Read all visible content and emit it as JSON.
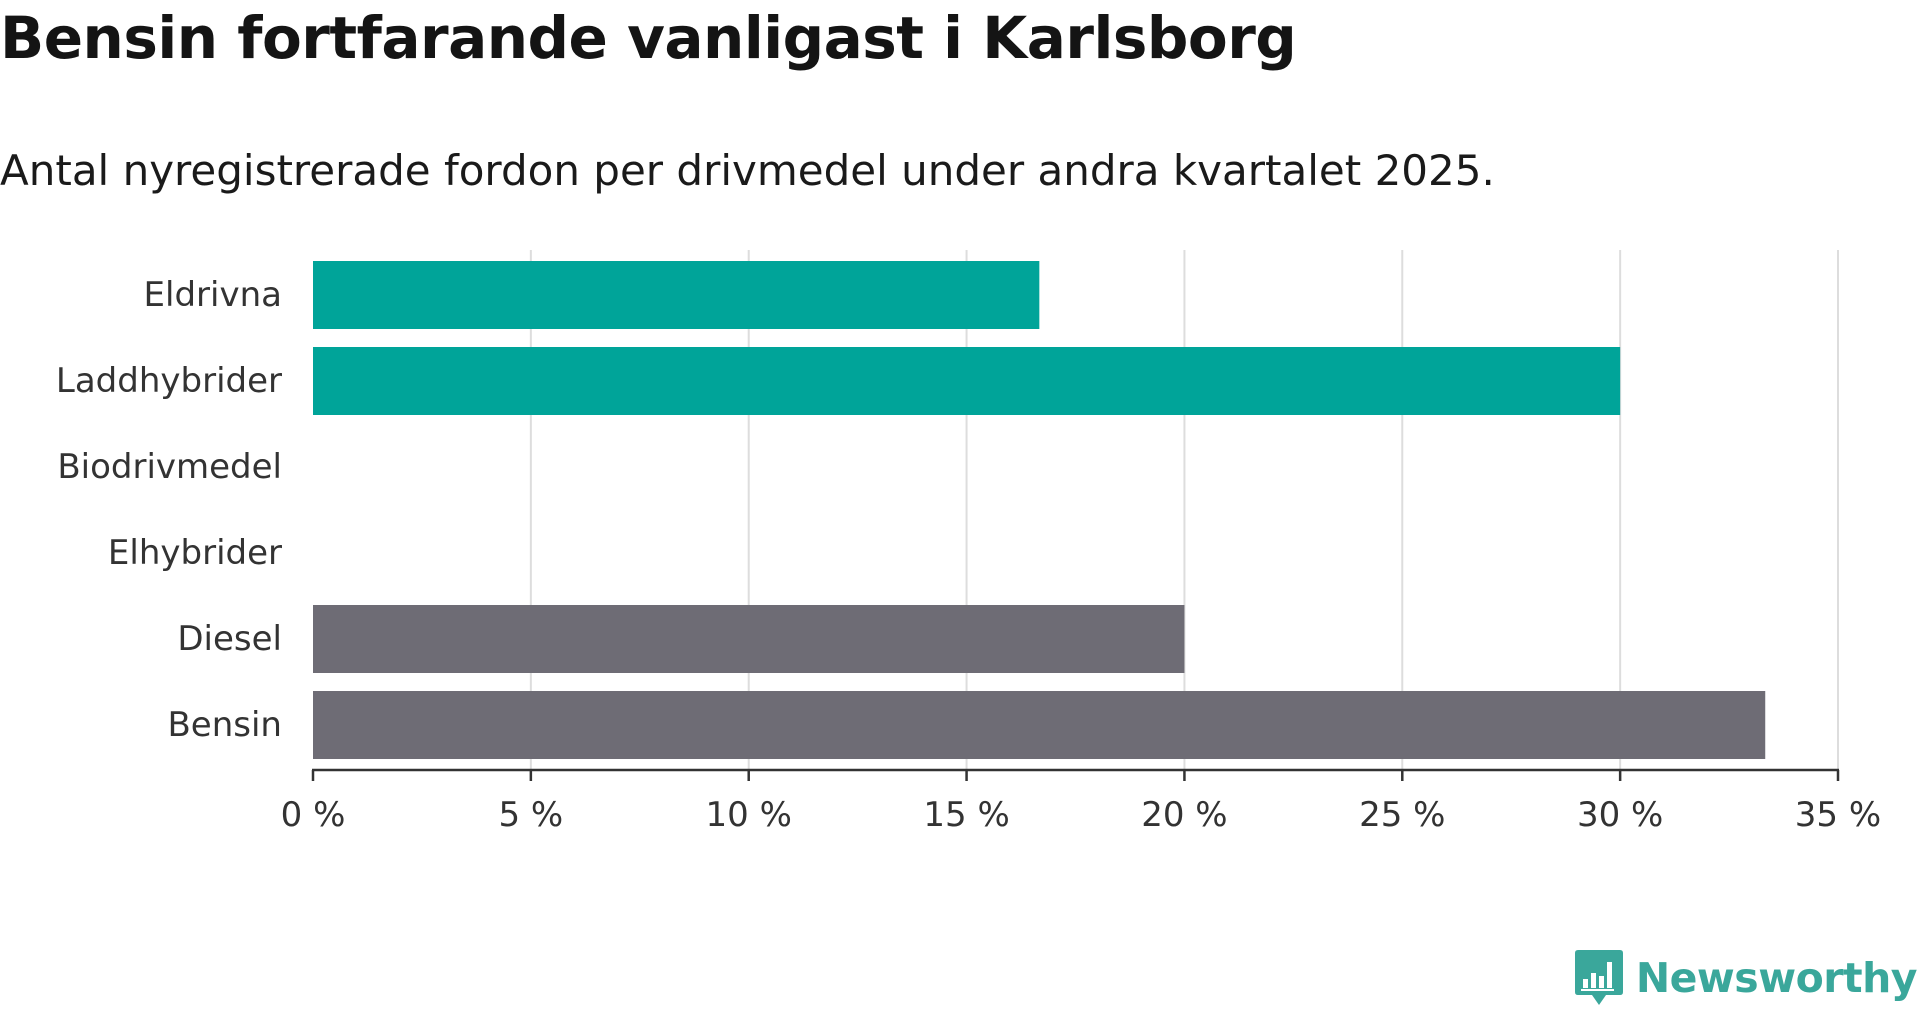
{
  "header": {
    "title": "Bensin fortfarande vanligast i Karlsborg",
    "subtitle": "Antal nyregistrerade fordon per drivmedel under andra kvartalet 2025."
  },
  "chart_data": {
    "type": "bar",
    "orientation": "horizontal",
    "categories": [
      "Eldrivna",
      "Laddhybrider",
      "Biodrivmedel",
      "Elhybrider",
      "Diesel",
      "Bensin"
    ],
    "values": [
      16.67,
      30.0,
      0,
      0,
      20.0,
      33.33
    ],
    "bar_colors": [
      "#00a499",
      "#00a499",
      "#00a499",
      "#00a499",
      "#6e6c75",
      "#6e6c75"
    ],
    "xlim": [
      0,
      35
    ],
    "x_ticks": [
      0,
      5,
      10,
      15,
      20,
      25,
      30,
      35
    ],
    "x_tick_labels": [
      "0 %",
      "5 %",
      "10 %",
      "15 %",
      "20 %",
      "25 %",
      "30 %",
      "35 %"
    ],
    "title": "Bensin fortfarande vanligast i Karlsborg",
    "subtitle": "Antal nyregistrerade fordon per drivmedel under andra kvartalet 2025.",
    "xlabel": "",
    "ylabel": "",
    "grid": true
  },
  "branding": {
    "name": "Newsworthy",
    "color": "#3aa79b",
    "icon": "bar-chart-speech-bubble-icon"
  }
}
